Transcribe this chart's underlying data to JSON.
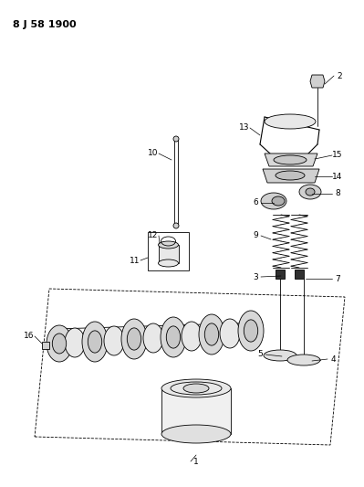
{
  "title": "8 J 58 1900",
  "background_color": "#ffffff",
  "line_color": "#000000",
  "fig_width": 3.99,
  "fig_height": 5.33,
  "dpi": 100
}
